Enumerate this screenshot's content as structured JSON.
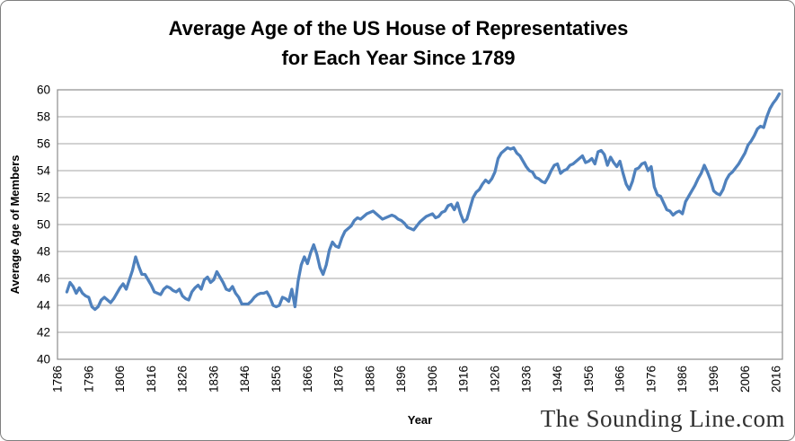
{
  "chart": {
    "title_line1": "Average Age of the US House of Representatives",
    "title_line2": "for Each Year Since 1789",
    "xlabel": "Year",
    "ylabel": "Average Age of Members",
    "watermark": "The Sounding Line.com"
  },
  "colors": {
    "line": "#4F81BD",
    "gridline": "#A6A6A6",
    "plot_border": "#8C8C8C",
    "text": "#000000",
    "watermark": "#303030",
    "frame_border": "#7F7F7F"
  },
  "chart_data": {
    "type": "line",
    "title": "Average Age of the US House of Representatives for Each Year Since 1789",
    "xlabel": "Year",
    "ylabel": "Average Age of Members",
    "x_axis_range": [
      1786,
      2018
    ],
    "ylim": [
      40,
      60
    ],
    "y_ticks": [
      40,
      42,
      44,
      46,
      48,
      50,
      52,
      54,
      56,
      58,
      60
    ],
    "x_ticks": [
      1786,
      1796,
      1806,
      1816,
      1826,
      1836,
      1846,
      1856,
      1866,
      1876,
      1886,
      1896,
      1906,
      1916,
      1926,
      1936,
      1946,
      1956,
      1966,
      1976,
      1986,
      1996,
      2006,
      2016
    ],
    "grid": true,
    "legend": "none",
    "series": [
      {
        "name": "Average Age of Members",
        "start_year": 1789,
        "x_step": 1,
        "values": [
          45.0,
          45.7,
          45.4,
          44.9,
          45.3,
          44.9,
          44.7,
          44.6,
          43.9,
          43.7,
          43.9,
          44.4,
          44.6,
          44.4,
          44.2,
          44.5,
          44.9,
          45.3,
          45.6,
          45.2,
          45.9,
          46.6,
          47.6,
          46.9,
          46.3,
          46.3,
          45.9,
          45.5,
          45.0,
          44.9,
          44.8,
          45.2,
          45.4,
          45.3,
          45.1,
          45.0,
          45.2,
          44.7,
          44.5,
          44.4,
          45.0,
          45.3,
          45.5,
          45.2,
          45.9,
          46.1,
          45.7,
          45.9,
          46.5,
          46.1,
          45.7,
          45.2,
          45.1,
          45.4,
          44.9,
          44.6,
          44.1,
          44.1,
          44.1,
          44.3,
          44.6,
          44.8,
          44.9,
          44.9,
          45.0,
          44.6,
          44.0,
          43.9,
          44.0,
          44.6,
          44.5,
          44.3,
          45.2,
          43.9,
          45.8,
          47.0,
          47.6,
          47.1,
          47.9,
          48.5,
          47.8,
          46.8,
          46.3,
          47.0,
          48.1,
          48.7,
          48.4,
          48.3,
          49.0,
          49.5,
          49.7,
          49.9,
          50.3,
          50.5,
          50.4,
          50.6,
          50.8,
          50.9,
          51.0,
          50.8,
          50.6,
          50.4,
          50.5,
          50.6,
          50.7,
          50.6,
          50.4,
          50.3,
          50.1,
          49.8,
          49.7,
          49.6,
          49.9,
          50.2,
          50.4,
          50.6,
          50.7,
          50.8,
          50.5,
          50.6,
          50.9,
          51.0,
          51.4,
          51.5,
          51.1,
          51.6,
          50.8,
          50.2,
          50.4,
          51.2,
          52.0,
          52.4,
          52.6,
          53.0,
          53.3,
          53.1,
          53.4,
          53.9,
          54.9,
          55.3,
          55.5,
          55.7,
          55.6,
          55.7,
          55.3,
          55.1,
          54.7,
          54.3,
          54.0,
          53.9,
          53.5,
          53.4,
          53.2,
          53.1,
          53.5,
          54.0,
          54.4,
          54.5,
          53.8,
          54.0,
          54.1,
          54.4,
          54.5,
          54.7,
          54.9,
          55.1,
          54.6,
          54.7,
          54.9,
          54.5,
          55.4,
          55.5,
          55.2,
          54.4,
          55.0,
          54.6,
          54.3,
          54.7,
          53.8,
          53.0,
          52.6,
          53.2,
          54.1,
          54.2,
          54.5,
          54.6,
          54.0,
          54.3,
          52.8,
          52.2,
          52.1,
          51.6,
          51.1,
          51.0,
          50.7,
          50.9,
          51.0,
          50.8,
          51.7,
          52.1,
          52.5,
          52.9,
          53.4,
          53.8,
          54.4,
          53.9,
          53.3,
          52.5,
          52.3,
          52.2,
          52.6,
          53.3,
          53.7,
          53.9,
          54.2,
          54.5,
          54.9,
          55.3,
          55.9,
          56.2,
          56.6,
          57.1,
          57.3,
          57.2,
          58.0,
          58.6,
          59.0,
          59.3,
          59.7
        ]
      }
    ]
  }
}
